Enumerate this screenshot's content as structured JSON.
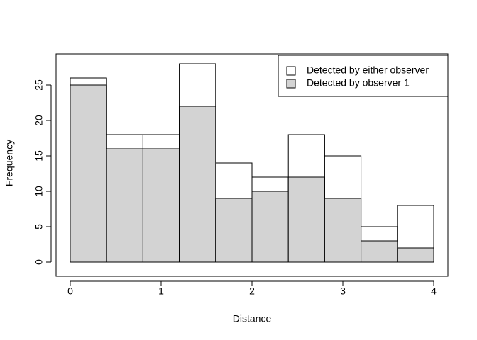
{
  "chart_data": {
    "type": "histogram",
    "bins": [
      0,
      0.4,
      0.8,
      1.2,
      1.6,
      2.0,
      2.4,
      2.8,
      3.2,
      3.6,
      4.0
    ],
    "series": [
      {
        "name": "Detected by either observer",
        "color": "#ffffff",
        "values": [
          26,
          18,
          18,
          28,
          14,
          12,
          18,
          15,
          5,
          8
        ]
      },
      {
        "name": "Detected by observer 1",
        "color": "#d3d3d3",
        "values": [
          25,
          16,
          16,
          22,
          9,
          10,
          12,
          9,
          3,
          2
        ]
      }
    ],
    "x_label": "Distance",
    "y_label": "Frequency",
    "xlim": [
      -0.156,
      4.156
    ],
    "ylim": [
      -2,
      29.4
    ],
    "xticks": [
      0,
      1,
      2,
      3,
      4
    ],
    "yticks": [
      0,
      5,
      10,
      15,
      20,
      25
    ],
    "grid": false,
    "legend": "topright"
  }
}
